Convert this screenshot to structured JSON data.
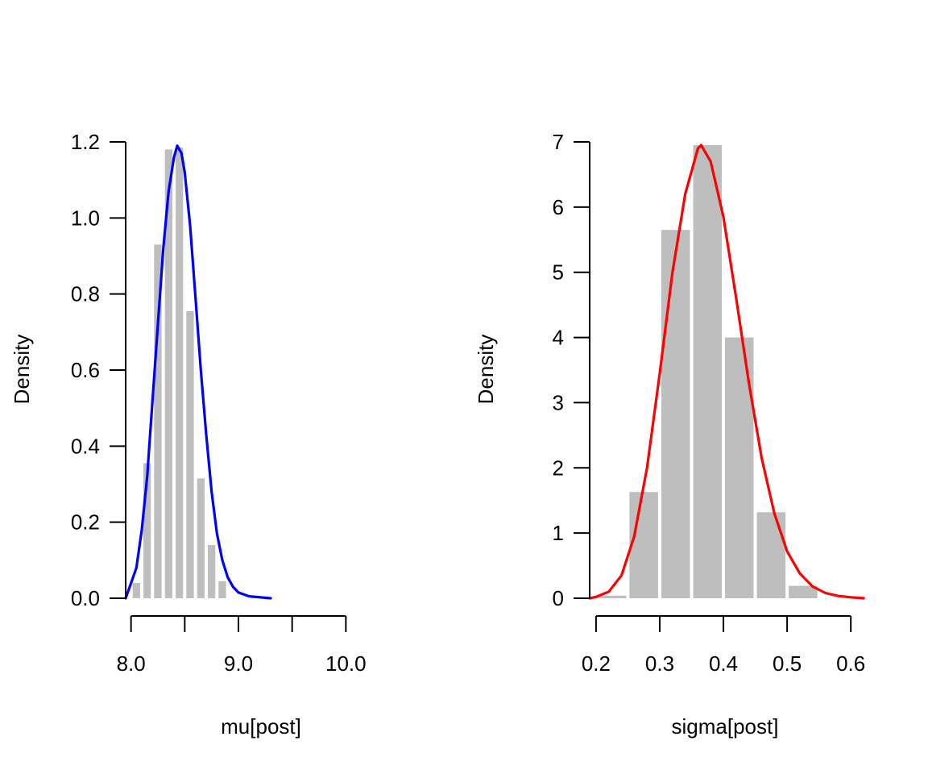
{
  "chart_data": [
    {
      "type": "bar",
      "subtype": "histogram-with-density",
      "xlabel": "mu[post]",
      "ylabel": "Density",
      "xlim": [
        7.95,
        10.5
      ],
      "ylim": [
        0,
        1.2
      ],
      "x_ticks": [
        8.0,
        8.5,
        9.0,
        9.5,
        10.0
      ],
      "x_tick_labels": [
        "8.0",
        "",
        "9.0",
        "",
        "10.0"
      ],
      "y_ticks": [
        0.0,
        0.2,
        0.4,
        0.6,
        0.8,
        1.0,
        1.2
      ],
      "y_tick_labels": [
        "0.0",
        "0.2",
        "0.4",
        "0.6",
        "0.8",
        "1.0",
        "1.2"
      ],
      "bar_color": "#bebebe",
      "line_color": "#0000ff",
      "bins": [
        {
          "x0": 8.0,
          "x1": 8.1,
          "density": 0.04
        },
        {
          "x0": 8.1,
          "x1": 8.2,
          "density": 0.355
        },
        {
          "x0": 8.2,
          "x1": 8.3,
          "density": 0.93
        },
        {
          "x0": 8.3,
          "x1": 8.4,
          "density": 1.18
        },
        {
          "x0": 8.4,
          "x1": 8.5,
          "density": 1.185
        },
        {
          "x0": 8.5,
          "x1": 8.6,
          "density": 0.755
        },
        {
          "x0": 8.6,
          "x1": 8.7,
          "density": 0.315
        },
        {
          "x0": 8.7,
          "x1": 8.8,
          "density": 0.14
        },
        {
          "x0": 8.8,
          "x1": 8.9,
          "density": 0.045
        }
      ],
      "density_curve": [
        [
          7.95,
          0.0
        ],
        [
          8.0,
          0.04
        ],
        [
          8.05,
          0.08
        ],
        [
          8.1,
          0.18
        ],
        [
          8.15,
          0.32
        ],
        [
          8.2,
          0.52
        ],
        [
          8.25,
          0.72
        ],
        [
          8.3,
          0.92
        ],
        [
          8.35,
          1.07
        ],
        [
          8.4,
          1.16
        ],
        [
          8.43,
          1.19
        ],
        [
          8.47,
          1.17
        ],
        [
          8.5,
          1.12
        ],
        [
          8.55,
          0.98
        ],
        [
          8.6,
          0.79
        ],
        [
          8.65,
          0.6
        ],
        [
          8.7,
          0.43
        ],
        [
          8.75,
          0.28
        ],
        [
          8.8,
          0.17
        ],
        [
          8.85,
          0.1
        ],
        [
          8.9,
          0.055
        ],
        [
          8.95,
          0.03
        ],
        [
          9.0,
          0.015
        ],
        [
          9.1,
          0.005
        ],
        [
          9.3,
          0.0
        ]
      ]
    },
    {
      "type": "bar",
      "subtype": "histogram-with-density",
      "xlabel": "sigma[post]",
      "ylabel": "Density",
      "xlim": [
        0.19,
        0.62
      ],
      "ylim": [
        0,
        7
      ],
      "x_ticks": [
        0.2,
        0.3,
        0.4,
        0.5,
        0.6
      ],
      "x_tick_labels": [
        "0.2",
        "0.3",
        "0.4",
        "0.5",
        "0.6"
      ],
      "y_ticks": [
        0,
        1,
        2,
        3,
        4,
        5,
        6,
        7
      ],
      "y_tick_labels": [
        "0",
        "1",
        "2",
        "3",
        "4",
        "5",
        "6",
        "7"
      ],
      "bar_color": "#bebebe",
      "line_color": "#ff0000",
      "bins": [
        {
          "x0": 0.2,
          "x1": 0.25,
          "density": 0.04
        },
        {
          "x0": 0.25,
          "x1": 0.3,
          "density": 1.63
        },
        {
          "x0": 0.3,
          "x1": 0.35,
          "density": 5.65
        },
        {
          "x0": 0.35,
          "x1": 0.4,
          "density": 6.95
        },
        {
          "x0": 0.4,
          "x1": 0.45,
          "density": 4.0
        },
        {
          "x0": 0.45,
          "x1": 0.5,
          "density": 1.32
        },
        {
          "x0": 0.5,
          "x1": 0.55,
          "density": 0.19
        }
      ],
      "density_curve": [
        [
          0.19,
          0.0
        ],
        [
          0.2,
          0.02
        ],
        [
          0.22,
          0.1
        ],
        [
          0.24,
          0.35
        ],
        [
          0.26,
          0.95
        ],
        [
          0.28,
          2.0
        ],
        [
          0.3,
          3.45
        ],
        [
          0.32,
          5.0
        ],
        [
          0.34,
          6.2
        ],
        [
          0.36,
          6.9
        ],
        [
          0.365,
          6.95
        ],
        [
          0.38,
          6.7
        ],
        [
          0.4,
          5.85
        ],
        [
          0.42,
          4.6
        ],
        [
          0.44,
          3.3
        ],
        [
          0.46,
          2.15
        ],
        [
          0.48,
          1.3
        ],
        [
          0.5,
          0.72
        ],
        [
          0.52,
          0.38
        ],
        [
          0.54,
          0.18
        ],
        [
          0.56,
          0.08
        ],
        [
          0.58,
          0.035
        ],
        [
          0.6,
          0.015
        ],
        [
          0.62,
          0.0
        ]
      ]
    }
  ]
}
